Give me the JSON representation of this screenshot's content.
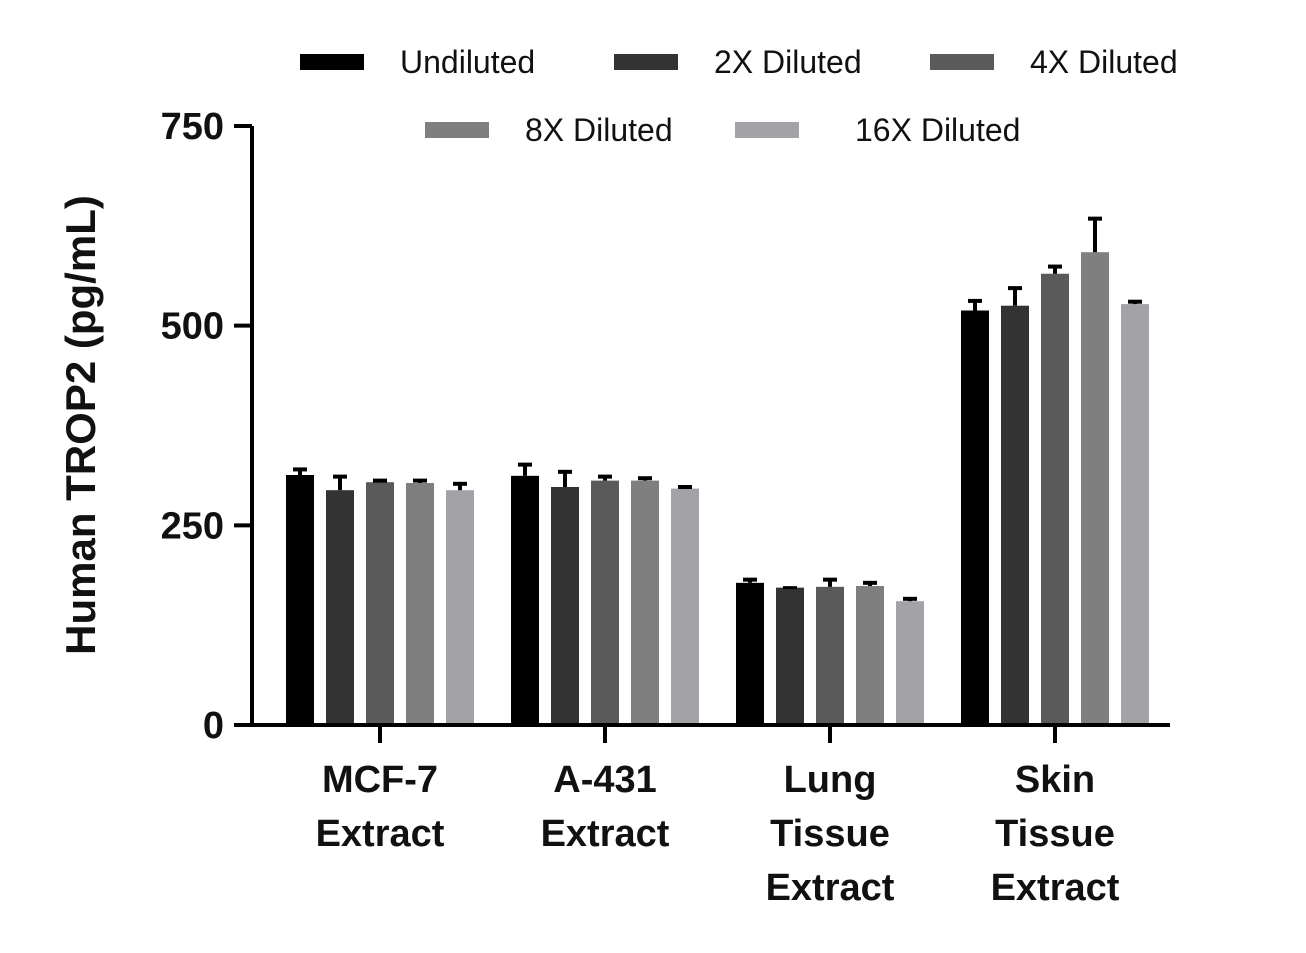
{
  "chart_data": {
    "type": "bar",
    "ylabel": "Human TROP2 (pg/mL)",
    "xlabel": "",
    "ylim": [
      0,
      750
    ],
    "yticks": [
      0,
      250,
      500,
      750
    ],
    "categories": [
      [
        "MCF-7",
        "Extract"
      ],
      [
        "A-431",
        "Extract"
      ],
      [
        "Lung",
        "Tissue",
        "Extract"
      ],
      [
        "Skin",
        "Tissue",
        "Extract"
      ]
    ],
    "series": [
      {
        "name": "Undiluted",
        "color": "#000000",
        "values": [
          313,
          312,
          178,
          519
        ],
        "errors": [
          7,
          14,
          4,
          12
        ]
      },
      {
        "name": "2X Diluted",
        "color": "#333333",
        "values": [
          294,
          298,
          172,
          525
        ],
        "errors": [
          17,
          19,
          0,
          22
        ]
      },
      {
        "name": "4X Diluted",
        "color": "#5a5a5a",
        "values": [
          304,
          306,
          173,
          565
        ],
        "errors": [
          2,
          5,
          9,
          9
        ]
      },
      {
        "name": "8X Diluted",
        "color": "#7f7f7f",
        "values": [
          303,
          306,
          174,
          592
        ],
        "errors": [
          3,
          3,
          4,
          42
        ]
      },
      {
        "name": "16X Diluted",
        "color": "#a3a3a7",
        "values": [
          294,
          296,
          155,
          527
        ],
        "errors": [
          8,
          2,
          3,
          3
        ]
      }
    ],
    "grid": false,
    "legend_position": "top"
  }
}
